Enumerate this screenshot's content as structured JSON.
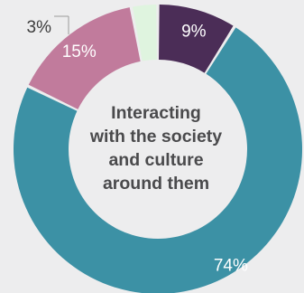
{
  "chart_data": {
    "type": "donut",
    "center_label_lines": [
      "Interacting",
      "with the society",
      "and culture",
      "around them"
    ],
    "slices": [
      {
        "value": 9,
        "label": "9%",
        "color": "#4b2d57",
        "label_color": "#ffffff"
      },
      {
        "value": 74,
        "label": "74%",
        "color": "#3c91a5",
        "label_color": "#ffffff"
      },
      {
        "value": 15,
        "label": "15%",
        "color": "#c17b9c",
        "label_color": "#ffffff"
      },
      {
        "value": 3,
        "label": "3%",
        "color": "#dff4df",
        "label_color": "#3c3c3c"
      }
    ]
  }
}
